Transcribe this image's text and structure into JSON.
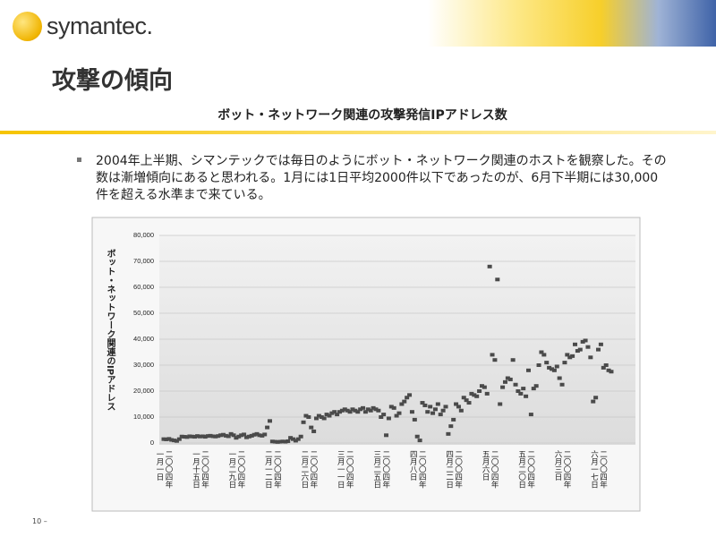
{
  "slide": {
    "logo": "symantec.",
    "title": "攻撃の傾向",
    "subtitle": "ボット・ネットワーク関連の攻撃発信IPアドレス数",
    "bullet": "2004年上半期、シマンテックでは毎日のようにボット・ネットワーク関連のホストを観察した。その数は漸増傾向にあると思われる。1月には1日平均2000件以下であったのが、6月下半期には30,000件を超える水準まで来ている。",
    "footer": "10 –"
  },
  "chart_data": {
    "type": "scatter",
    "y_label": "ボット・ネットワーク関連のIPアドレス",
    "color": "#4a4a4a",
    "grid": true,
    "ylim": [
      0,
      80000
    ],
    "yticks": [
      0,
      {
        "value": 10000,
        "label": "10,000"
      },
      {
        "value": 20000,
        "label": "20,000"
      },
      {
        "value": 30000,
        "label": "30,000"
      },
      {
        "value": 40000,
        "label": "40,000"
      },
      {
        "value": 50000,
        "label": "50,000"
      },
      {
        "value": 60000,
        "label": "60,000"
      },
      {
        "value": 70000,
        "label": "70,000"
      },
      {
        "value": 80000,
        "label": "80,000"
      }
    ],
    "categories": [
      "二〇〇四年一月一日",
      null,
      null,
      null,
      null,
      null,
      null,
      null,
      null,
      null,
      null,
      null,
      null,
      null,
      "二〇〇四年一月十五日",
      null,
      null,
      null,
      null,
      null,
      null,
      null,
      null,
      null,
      null,
      null,
      null,
      null,
      "二〇〇四年一月二九日",
      null,
      null,
      null,
      null,
      null,
      null,
      null,
      null,
      null,
      null,
      null,
      null,
      null,
      "二〇〇四年二月一二日",
      null,
      null,
      null,
      null,
      null,
      null,
      null,
      null,
      null,
      null,
      null,
      null,
      null,
      "二〇〇四年二月二六日",
      null,
      null,
      null,
      null,
      null,
      null,
      null,
      null,
      null,
      null,
      null,
      null,
      null,
      "二〇〇四年三月一一日",
      null,
      null,
      null,
      null,
      null,
      null,
      null,
      null,
      null,
      null,
      null,
      null,
      null,
      "二〇〇四年三月二五日",
      null,
      null,
      null,
      null,
      null,
      null,
      null,
      null,
      null,
      null,
      null,
      null,
      null,
      "二〇〇四年四月八日",
      null,
      null,
      null,
      null,
      null,
      null,
      null,
      null,
      null,
      null,
      null,
      null,
      null,
      "二〇〇四年四月二二日",
      null,
      null,
      null,
      null,
      null,
      null,
      null,
      null,
      null,
      null,
      null,
      null,
      null,
      "二〇〇四年五月六日",
      null,
      null,
      null,
      null,
      null,
      null,
      null,
      null,
      null,
      null,
      null,
      null,
      null,
      "二〇〇四年五月二〇日",
      null,
      null,
      null,
      null,
      null,
      null,
      null,
      null,
      null,
      null,
      null,
      null,
      null,
      "二〇〇四年六月三日",
      null,
      null,
      null,
      null,
      null,
      null,
      null,
      null,
      null,
      null,
      null,
      null,
      null,
      "二〇〇四年六月一七日",
      null,
      null,
      null,
      null,
      null
    ],
    "values": [
      1500,
      1400,
      1600,
      1200,
      1000,
      800,
      1500,
      2500,
      2400,
      2300,
      2600,
      2500,
      2400,
      2700,
      2500,
      2600,
      2400,
      2700,
      2800,
      2600,
      2500,
      2700,
      3000,
      3200,
      2800,
      2600,
      3500,
      3000,
      2000,
      2500,
      3000,
      3300,
      2200,
      2500,
      2800,
      3200,
      3500,
      3000,
      2800,
      3300,
      6000,
      8500,
      600,
      500,
      400,
      500,
      600,
      500,
      700,
      2000,
      1500,
      900,
      1500,
      2500,
      8000,
      10500,
      10000,
      6000,
      4500,
      9500,
      10500,
      10000,
      9500,
      11000,
      10500,
      11500,
      12000,
      11000,
      12000,
      12500,
      13000,
      12500,
      12000,
      13000,
      12500,
      12000,
      13000,
      13500,
      12000,
      13000,
      12500,
      13500,
      13000,
      12500,
      10000,
      11000,
      3000,
      9500,
      14000,
      13500,
      10500,
      11500,
      15000,
      16000,
      17500,
      18500,
      12000,
      9000,
      2500,
      1000,
      15500,
      14500,
      12000,
      14000,
      11500,
      13000,
      15000,
      11000,
      12500,
      14000,
      3500,
      6500,
      9000,
      15000,
      14000,
      12500,
      17500,
      16500,
      15500,
      19000,
      18500,
      18000,
      20000,
      22000,
      21500,
      19000,
      68000,
      34000,
      32000,
      63000,
      15000,
      21500,
      23500,
      25000,
      24500,
      32000,
      22500,
      20000,
      19000,
      21000,
      18000,
      28000,
      11000,
      21000,
      22000,
      30000,
      35000,
      34000,
      31000,
      29000,
      28500,
      28000,
      29500,
      25000,
      22500,
      31000,
      34000,
      33000,
      33500,
      38000,
      35500,
      36000,
      39000,
      39500,
      37000,
      33000,
      16000,
      17500,
      36000,
      38000,
      29000,
      30000,
      28000,
      27500
    ]
  }
}
